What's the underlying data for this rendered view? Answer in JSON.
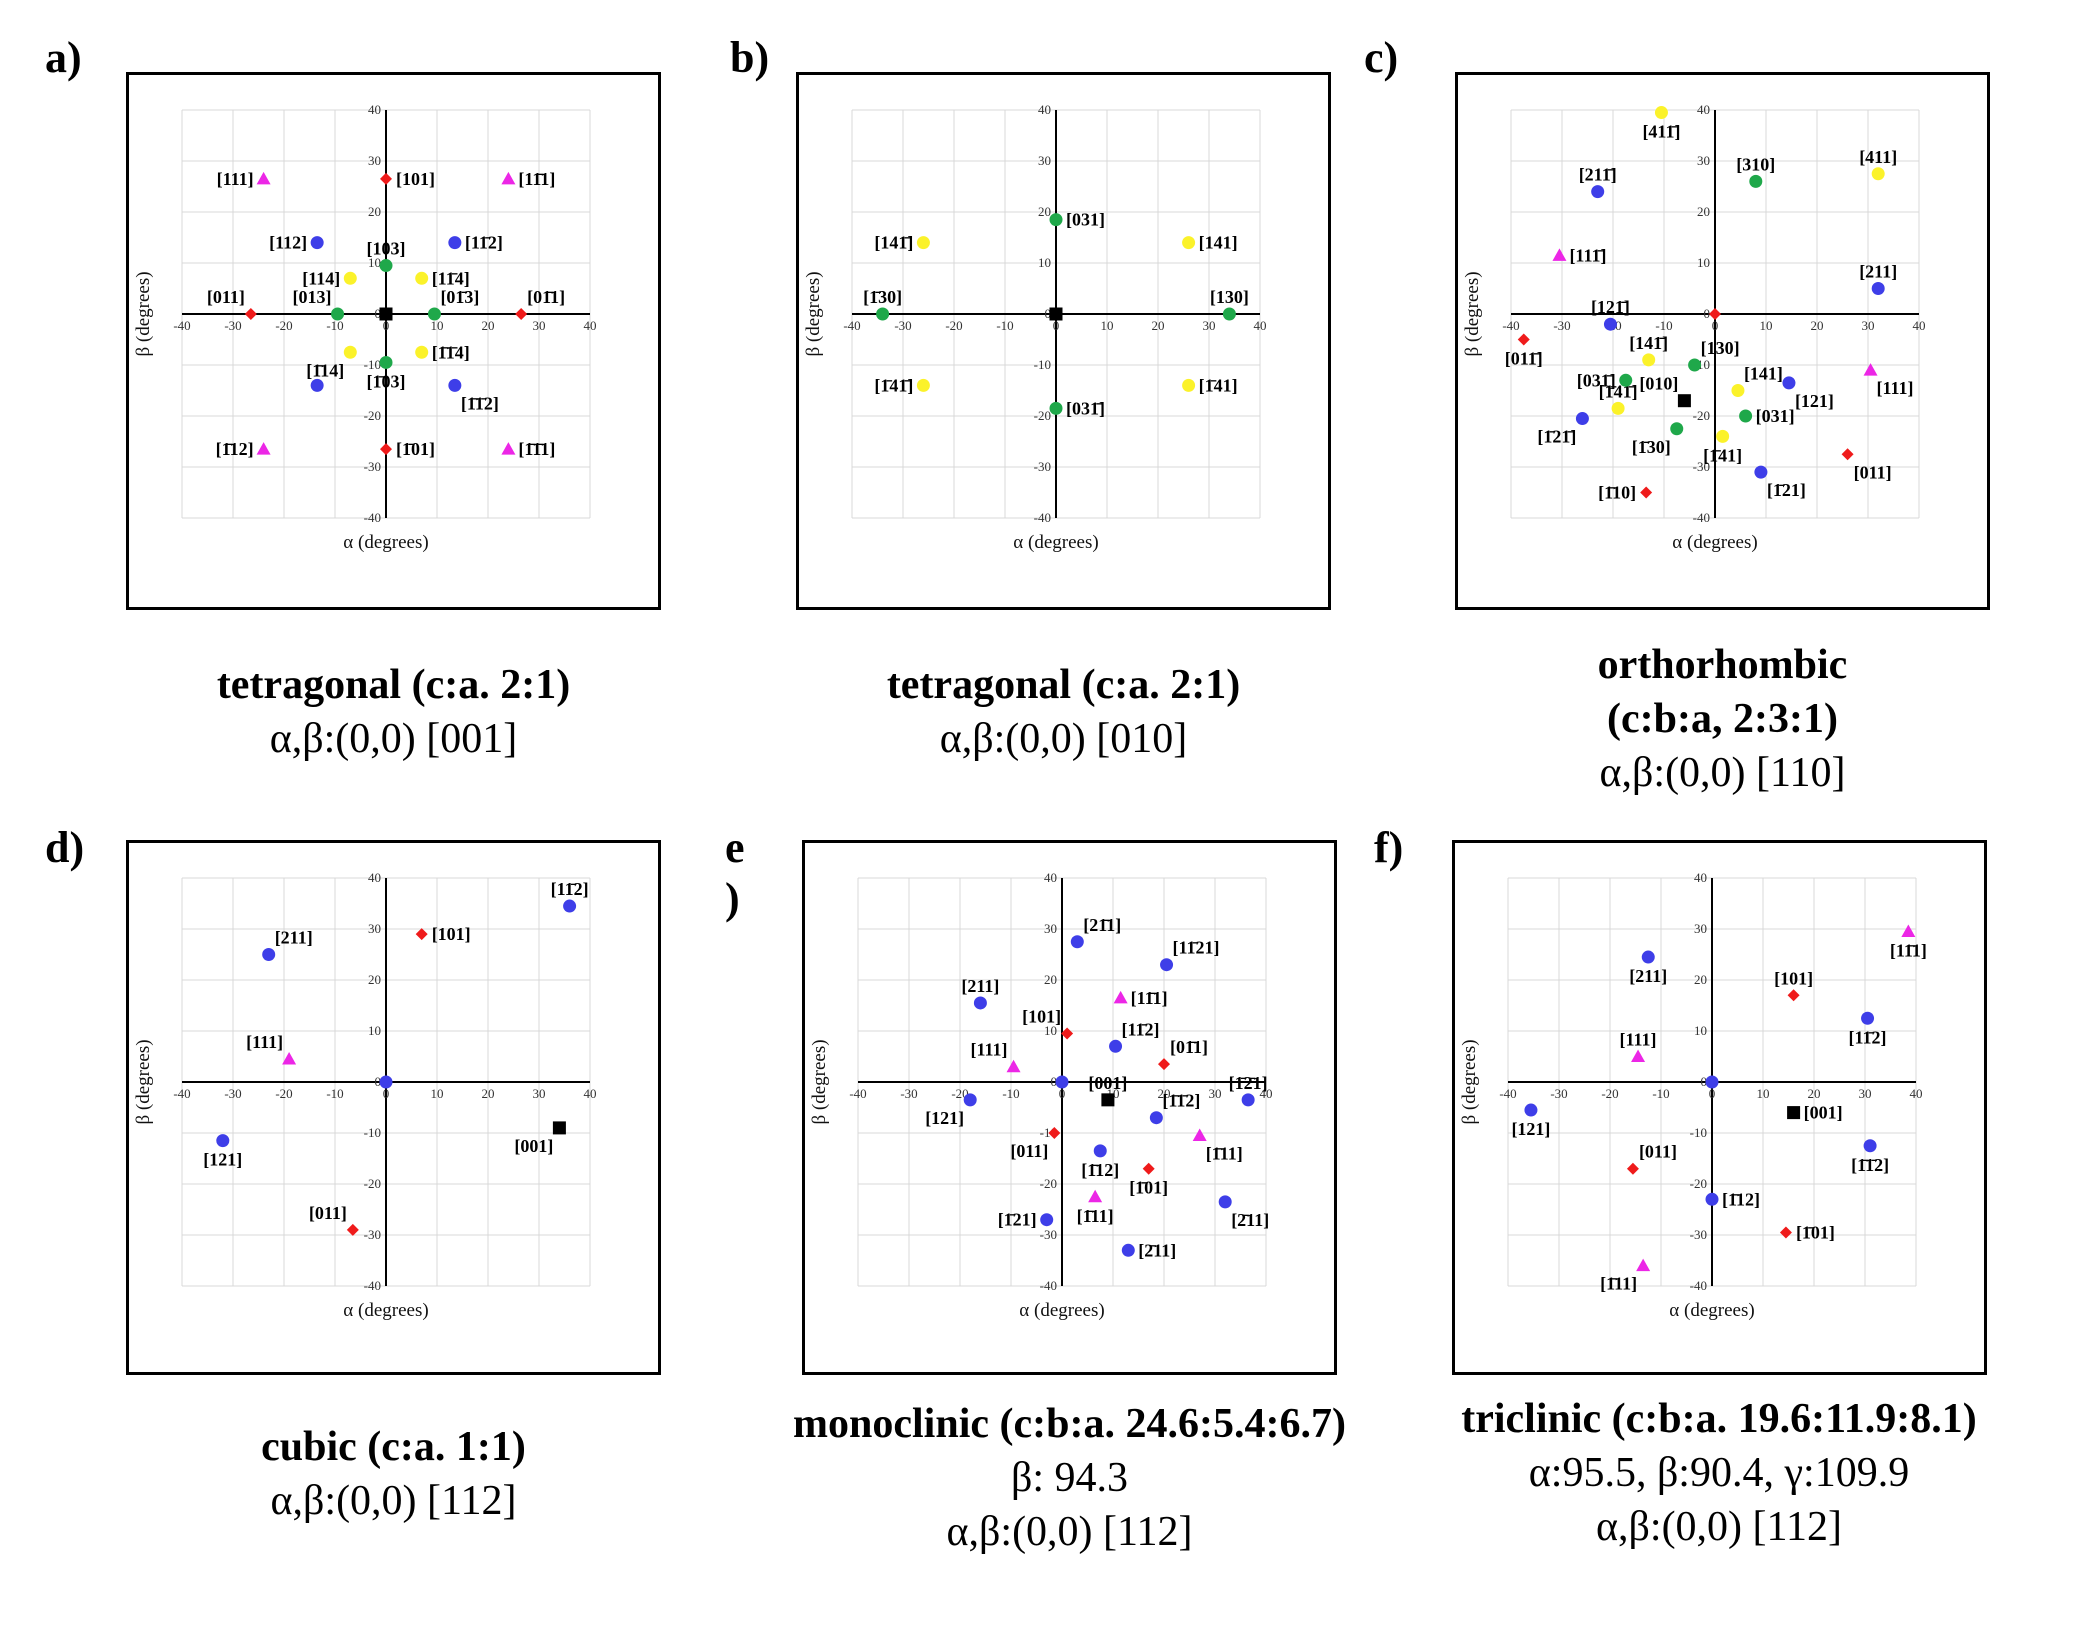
{
  "colors": {
    "red": "#ef1b1b",
    "blue": "#3e3ee8",
    "magenta": "#ec26e6",
    "yellow": "#fbf22a",
    "green": "#1fa84a",
    "black": "#000000",
    "grid": "#d9d9d9",
    "axis": "#000000"
  },
  "chart_data": [
    {
      "id": "a",
      "type": "scatter",
      "letter": "a)",
      "caption": [
        "tetragonal (c:a. 2:1)",
        "α,β:(0,0) [001]"
      ],
      "xlabel": "α (degrees)",
      "ylabel": "β (degrees)",
      "xlim": [
        -40,
        40
      ],
      "ylim": [
        -40,
        40
      ],
      "ticks": [
        -40,
        -30,
        -20,
        -10,
        0,
        10,
        20,
        30,
        40
      ],
      "grid": true,
      "points": [
        {
          "x": 0,
          "y": 0,
          "shape": "square",
          "color": "black",
          "label": ""
        },
        {
          "x": 0,
          "y": 26.5,
          "shape": "diamond",
          "color": "red",
          "label": "[101]",
          "lp": "r"
        },
        {
          "x": 0,
          "y": -26.5,
          "shape": "diamond",
          "color": "red",
          "label": "[1̄01]",
          "lp": "r"
        },
        {
          "x": -26.5,
          "y": 0,
          "shape": "diamond",
          "color": "red",
          "label": "[011]",
          "lp": "tl"
        },
        {
          "x": 26.5,
          "y": 0,
          "shape": "diamond",
          "color": "red",
          "label": "[01̄1]",
          "lp": "tr"
        },
        {
          "x": -24,
          "y": 26.5,
          "shape": "triangle",
          "color": "magenta",
          "label": "[111]",
          "lp": "l"
        },
        {
          "x": 24,
          "y": 26.5,
          "shape": "triangle",
          "color": "magenta",
          "label": "[11̄1]",
          "lp": "r"
        },
        {
          "x": -24,
          "y": -26.5,
          "shape": "triangle",
          "color": "magenta",
          "label": "[1̄12]",
          "lp": "l"
        },
        {
          "x": 24,
          "y": -26.5,
          "shape": "triangle",
          "color": "magenta",
          "label": "[1̄1̄1]",
          "lp": "r"
        },
        {
          "x": -13.5,
          "y": 14,
          "shape": "circle",
          "color": "blue",
          "label": "[112]",
          "lp": "l"
        },
        {
          "x": 13.5,
          "y": 14,
          "shape": "circle",
          "color": "blue",
          "label": "[11̄2]",
          "lp": "r"
        },
        {
          "x": -13.5,
          "y": -14,
          "shape": "circle",
          "color": "blue",
          "label": "",
          "lp": "l"
        },
        {
          "x": 13.5,
          "y": -14,
          "shape": "circle",
          "color": "blue",
          "label": "[1̄1̄2]",
          "lp": "br"
        },
        {
          "x": 0,
          "y": 9.5,
          "shape": "circle",
          "color": "green",
          "label": "[103]",
          "lp": "t"
        },
        {
          "x": 0,
          "y": -9.5,
          "shape": "circle",
          "color": "green",
          "label": "[1̄03]",
          "lp": "b"
        },
        {
          "x": -9.5,
          "y": 0,
          "shape": "circle",
          "color": "green",
          "label": "[013]",
          "lp": "tl"
        },
        {
          "x": 9.5,
          "y": 0,
          "shape": "circle",
          "color": "green",
          "label": "[01̄3]",
          "lp": "tr"
        },
        {
          "x": -7,
          "y": 7,
          "shape": "circle",
          "color": "yellow",
          "label": "[114]",
          "lp": "l"
        },
        {
          "x": 7,
          "y": 7,
          "shape": "circle",
          "color": "yellow",
          "label": "[11̄4]",
          "lp": "r"
        },
        {
          "x": -7,
          "y": -7.5,
          "shape": "circle",
          "color": "yellow",
          "label": "[1̄14]",
          "lp": "bl"
        },
        {
          "x": 7,
          "y": -7.5,
          "shape": "circle",
          "color": "yellow",
          "label": "[1̄1̄4]",
          "lp": "r"
        }
      ]
    },
    {
      "id": "b",
      "type": "scatter",
      "letter": "b)",
      "caption": [
        "tetragonal (c:a. 2:1)",
        "α,β:(0,0) [010]"
      ],
      "xlabel": "α (degrees)",
      "ylabel": "β (degrees)",
      "xlim": [
        -40,
        40
      ],
      "ylim": [
        -40,
        40
      ],
      "ticks": [
        -40,
        -30,
        -20,
        -10,
        0,
        10,
        20,
        30,
        40
      ],
      "grid": true,
      "points": [
        {
          "x": 0,
          "y": 0,
          "shape": "square",
          "color": "black",
          "label": ""
        },
        {
          "x": 0,
          "y": 18.5,
          "shape": "circle",
          "color": "green",
          "label": "[031]",
          "lp": "r"
        },
        {
          "x": 0,
          "y": -18.5,
          "shape": "circle",
          "color": "green",
          "label": "[031̄]",
          "lp": "r"
        },
        {
          "x": -34,
          "y": 0,
          "shape": "circle",
          "color": "green",
          "label": "[1̄30]",
          "lp": "t"
        },
        {
          "x": 34,
          "y": 0,
          "shape": "circle",
          "color": "green",
          "label": "[130]",
          "lp": "t"
        },
        {
          "x": -26,
          "y": 14,
          "shape": "circle",
          "color": "yellow",
          "label": "[141̄]",
          "lp": "l"
        },
        {
          "x": 26,
          "y": 14,
          "shape": "circle",
          "color": "yellow",
          "label": "[141]",
          "lp": "r"
        },
        {
          "x": -26,
          "y": -14,
          "shape": "circle",
          "color": "yellow",
          "label": "[1̄41̄]",
          "lp": "l"
        },
        {
          "x": 26,
          "y": -14,
          "shape": "circle",
          "color": "yellow",
          "label": "[1̄41]",
          "lp": "r"
        }
      ]
    },
    {
      "id": "c",
      "type": "scatter",
      "letter": "c)",
      "caption": [
        "orthorhombic",
        "(c:b:a, 2:3:1)",
        "α,β:(0,0) [110]"
      ],
      "xlabel": "α (degrees)",
      "ylabel": "β (degrees)",
      "xlim": [
        -40,
        40
      ],
      "ylim": [
        -40,
        40
      ],
      "ticks": [
        -40,
        -30,
        -20,
        -10,
        0,
        10,
        20,
        30,
        40
      ],
      "grid": true,
      "points": [
        {
          "x": -6,
          "y": -17,
          "shape": "square",
          "color": "black",
          "label": "[010]",
          "lp": "tl"
        },
        {
          "x": 0,
          "y": 0,
          "shape": "diamond",
          "color": "red",
          "label": ""
        },
        {
          "x": -37.5,
          "y": -5,
          "shape": "diamond",
          "color": "red",
          "label": "[011̄]",
          "lp": "b"
        },
        {
          "x": 26,
          "y": -27.5,
          "shape": "diamond",
          "color": "red",
          "label": "[011]",
          "lp": "br"
        },
        {
          "x": -13.5,
          "y": -35,
          "shape": "diamond",
          "color": "red",
          "label": "[1̄10]",
          "lp": "l"
        },
        {
          "x": -23,
          "y": 24,
          "shape": "circle",
          "color": "blue",
          "label": "[211̄]",
          "lp": "t"
        },
        {
          "x": 32,
          "y": 5,
          "shape": "circle",
          "color": "blue",
          "label": "[211]",
          "lp": "t"
        },
        {
          "x": -20.5,
          "y": -2,
          "shape": "circle",
          "color": "blue",
          "label": "[121̄]",
          "lp": "t"
        },
        {
          "x": 14.5,
          "y": -13.5,
          "shape": "circle",
          "color": "blue",
          "label": "[121]",
          "lp": "br"
        },
        {
          "x": -26,
          "y": -20.5,
          "shape": "circle",
          "color": "blue",
          "label": "[1̄21̄]",
          "lp": "bl"
        },
        {
          "x": 9,
          "y": -31,
          "shape": "circle",
          "color": "blue",
          "label": "[1̄21]",
          "lp": "br"
        },
        {
          "x": -30.5,
          "y": 11.5,
          "shape": "triangle",
          "color": "magenta",
          "label": "[111̄]",
          "lp": "r"
        },
        {
          "x": 30.5,
          "y": -11,
          "shape": "triangle",
          "color": "magenta",
          "label": "[111]",
          "lp": "br"
        },
        {
          "x": -10.5,
          "y": 39.5,
          "shape": "circle",
          "color": "yellow",
          "label": "[411̄]",
          "lp": "b"
        },
        {
          "x": 32,
          "y": 27.5,
          "shape": "circle",
          "color": "yellow",
          "label": "[411]",
          "lp": "t"
        },
        {
          "x": -13,
          "y": -9,
          "shape": "circle",
          "color": "yellow",
          "label": "[141̄]",
          "lp": "t"
        },
        {
          "x": 4.5,
          "y": -15,
          "shape": "circle",
          "color": "yellow",
          "label": "[141]",
          "lp": "tr"
        },
        {
          "x": -19,
          "y": -18.5,
          "shape": "circle",
          "color": "yellow",
          "label": "[1̄41̄]",
          "lp": "t"
        },
        {
          "x": 1.5,
          "y": -24,
          "shape": "circle",
          "color": "yellow",
          "label": "[1̄41]",
          "lp": "b"
        },
        {
          "x": 8,
          "y": 26,
          "shape": "circle",
          "color": "green",
          "label": "[310]",
          "lp": "t"
        },
        {
          "x": -4,
          "y": -10,
          "shape": "circle",
          "color": "green",
          "label": "[130]",
          "lp": "tr"
        },
        {
          "x": -17.5,
          "y": -13,
          "shape": "circle",
          "color": "green",
          "label": "[031̄]",
          "lp": "l"
        },
        {
          "x": 6,
          "y": -20,
          "shape": "circle",
          "color": "green",
          "label": "[031]",
          "lp": "r"
        },
        {
          "x": -7.5,
          "y": -22.5,
          "shape": "circle",
          "color": "green",
          "label": "[1̄30]",
          "lp": "bl"
        }
      ]
    },
    {
      "id": "d",
      "type": "scatter",
      "letter": "d)",
      "caption": [
        "cubic (c:a. 1:1)",
        "α,β:(0,0) [112]"
      ],
      "xlabel": "α (degrees)",
      "ylabel": "β (degrees)",
      "xlim": [
        -40,
        40
      ],
      "ylim": [
        -40,
        40
      ],
      "ticks": [
        -40,
        -30,
        -20,
        -10,
        0,
        10,
        20,
        30,
        40
      ],
      "grid": true,
      "points": [
        {
          "x": 0,
          "y": 0,
          "shape": "circle",
          "color": "blue",
          "label": ""
        },
        {
          "x": 34,
          "y": -9,
          "shape": "square",
          "color": "black",
          "label": "[001]",
          "lp": "bl"
        },
        {
          "x": 7,
          "y": 29,
          "shape": "diamond",
          "color": "red",
          "label": "[101]",
          "lp": "r"
        },
        {
          "x": -6.5,
          "y": -29,
          "shape": "diamond",
          "color": "red",
          "label": "[011]",
          "lp": "tl"
        },
        {
          "x": -23,
          "y": 25,
          "shape": "circle",
          "color": "blue",
          "label": "[211]",
          "lp": "tr"
        },
        {
          "x": 36,
          "y": 34.5,
          "shape": "circle",
          "color": "blue",
          "label": "[11̄2]",
          "lp": "t"
        },
        {
          "x": -32,
          "y": -11.5,
          "shape": "circle",
          "color": "blue",
          "label": "[121]",
          "lp": "b"
        },
        {
          "x": -19,
          "y": 4.5,
          "shape": "triangle",
          "color": "magenta",
          "label": "[111]",
          "lp": "tl"
        }
      ]
    },
    {
      "id": "e",
      "type": "scatter",
      "letter": "e )",
      "caption": [
        "monoclinic (c:b:a. 24.6:5.4:6.7)",
        "β: 94.3",
        "α,β:(0,0) [112]"
      ],
      "xlabel": "α (degrees)",
      "ylabel": "β (degrees)",
      "xlim": [
        -40,
        40
      ],
      "ylim": [
        -40,
        40
      ],
      "ticks": [
        -40,
        -30,
        -20,
        -10,
        0,
        10,
        20,
        30,
        40
      ],
      "grid": true,
      "points": [
        {
          "x": 0,
          "y": 0,
          "shape": "circle",
          "color": "blue",
          "label": ""
        },
        {
          "x": 9,
          "y": -3.5,
          "shape": "square",
          "color": "black",
          "label": "[001]",
          "lp": "t"
        },
        {
          "x": 3,
          "y": 27.5,
          "shape": "circle",
          "color": "blue",
          "label": "[21̄1]",
          "lp": "tr"
        },
        {
          "x": 20.5,
          "y": 23,
          "shape": "circle",
          "color": "blue",
          "label": "[11̄21]",
          "lp": "tr"
        },
        {
          "x": -16,
          "y": 15.5,
          "shape": "circle",
          "color": "blue",
          "label": "[211]",
          "lp": "t"
        },
        {
          "x": 10.5,
          "y": 7,
          "shape": "circle",
          "color": "blue",
          "label": "[11̄2]",
          "lp": "tr"
        },
        {
          "x": -18,
          "y": -3.5,
          "shape": "circle",
          "color": "blue",
          "label": "[121]",
          "lp": "bl"
        },
        {
          "x": 36.5,
          "y": -3.5,
          "shape": "circle",
          "color": "blue",
          "label": "[1̄2̄1]",
          "lp": "t"
        },
        {
          "x": 18.5,
          "y": -7,
          "shape": "circle",
          "color": "blue",
          "label": "[1̄1̄2]",
          "lp": "tr"
        },
        {
          "x": 7.5,
          "y": -13.5,
          "shape": "circle",
          "color": "blue",
          "label": "[1̄12]",
          "lp": "b"
        },
        {
          "x": -3,
          "y": -27,
          "shape": "circle",
          "color": "blue",
          "label": "[1̄21]",
          "lp": "l"
        },
        {
          "x": 32,
          "y": -23.5,
          "shape": "circle",
          "color": "blue",
          "label": "[2̄11]",
          "lp": "br"
        },
        {
          "x": 13,
          "y": -33,
          "shape": "circle",
          "color": "blue",
          "label": "[2̄11]",
          "lp": "r"
        },
        {
          "x": 1,
          "y": 9.5,
          "shape": "diamond",
          "color": "red",
          "label": "[101]",
          "lp": "tl"
        },
        {
          "x": 20,
          "y": 3.5,
          "shape": "diamond",
          "color": "red",
          "label": "[01̄1]",
          "lp": "tr"
        },
        {
          "x": -1.5,
          "y": -10,
          "shape": "diamond",
          "color": "red",
          "label": "[011]",
          "lp": "bl"
        },
        {
          "x": 17,
          "y": -17,
          "shape": "diamond",
          "color": "red",
          "label": "[1̄01]",
          "lp": "b"
        },
        {
          "x": 11.5,
          "y": 16.5,
          "shape": "triangle",
          "color": "magenta",
          "label": "[11̄1]",
          "lp": "r"
        },
        {
          "x": -9.5,
          "y": 3,
          "shape": "triangle",
          "color": "magenta",
          "label": "[111]",
          "lp": "tl"
        },
        {
          "x": 27,
          "y": -10.5,
          "shape": "triangle",
          "color": "magenta",
          "label": "[1̄11]",
          "lp": "br"
        },
        {
          "x": 6.5,
          "y": -22.5,
          "shape": "triangle",
          "color": "magenta",
          "label": "[1̄11]",
          "lp": "b"
        }
      ]
    },
    {
      "id": "f",
      "type": "scatter",
      "letter": "f)",
      "caption": [
        "triclinic (c:b:a. 19.6:11.9:8.1)",
        "α:95.5, β:90.4, γ:109.9",
        "α,β:(0,0) [112]"
      ],
      "xlabel": "α (degrees)",
      "ylabel": "β (degrees)",
      "xlim": [
        -40,
        40
      ],
      "ylim": [
        -40,
        40
      ],
      "ticks": [
        -40,
        -30,
        -20,
        -10,
        0,
        10,
        20,
        30,
        40
      ],
      "grid": true,
      "points": [
        {
          "x": 0,
          "y": 0,
          "shape": "circle",
          "color": "blue",
          "label": ""
        },
        {
          "x": 16,
          "y": -6,
          "shape": "square",
          "color": "black",
          "label": "[001]",
          "lp": "r"
        },
        {
          "x": -12.5,
          "y": 24.5,
          "shape": "circle",
          "color": "blue",
          "label": "[211]",
          "lp": "b"
        },
        {
          "x": 30.5,
          "y": 12.5,
          "shape": "circle",
          "color": "blue",
          "label": "[11̄2]",
          "lp": "b"
        },
        {
          "x": -35.5,
          "y": -5.5,
          "shape": "circle",
          "color": "blue",
          "label": "[121]",
          "lp": "b"
        },
        {
          "x": 31,
          "y": -12.5,
          "shape": "circle",
          "color": "blue",
          "label": "[1̄1̄2]",
          "lp": "b"
        },
        {
          "x": 0,
          "y": -23,
          "shape": "circle",
          "color": "blue",
          "label": "[1̄12]",
          "lp": "r"
        },
        {
          "x": 16,
          "y": 17,
          "shape": "diamond",
          "color": "red",
          "label": "[101]",
          "lp": "t"
        },
        {
          "x": -15.5,
          "y": -17,
          "shape": "diamond",
          "color": "red",
          "label": "[011]",
          "lp": "tr"
        },
        {
          "x": 14.5,
          "y": -29.5,
          "shape": "diamond",
          "color": "red",
          "label": "[1̄01]",
          "lp": "r"
        },
        {
          "x": 38.5,
          "y": 29.5,
          "shape": "triangle",
          "color": "magenta",
          "label": "[11̄1]",
          "lp": "b"
        },
        {
          "x": -14.5,
          "y": 5,
          "shape": "triangle",
          "color": "magenta",
          "label": "[111]",
          "lp": "t"
        },
        {
          "x": -13.5,
          "y": -36,
          "shape": "triangle",
          "color": "magenta",
          "label": "[1̄11]",
          "lp": "bl"
        }
      ]
    }
  ]
}
